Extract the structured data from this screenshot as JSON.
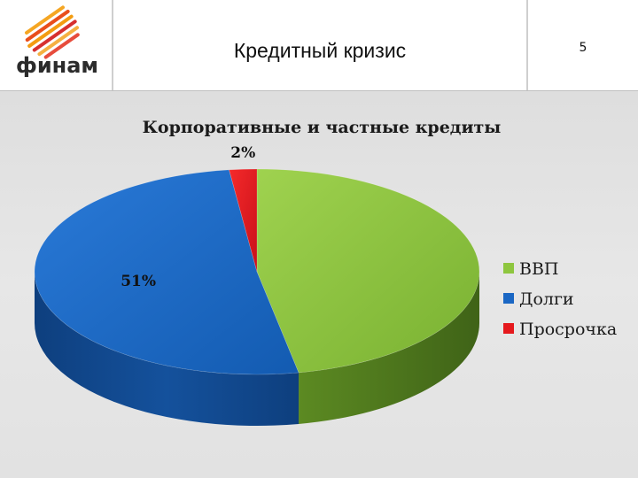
{
  "header": {
    "logo_text": "финам",
    "title": "Кредитный кризис",
    "slide_number": "5"
  },
  "chart_data": {
    "type": "pie",
    "style": "3d",
    "title": "Корпоративные и частные кредиты",
    "categories": [
      "ВВП",
      "Долги",
      "Просрочка"
    ],
    "values": [
      47,
      51,
      2
    ],
    "data_labels": [
      "",
      "51%",
      "2%"
    ],
    "colors": [
      "#8ec63f",
      "#1a67c4",
      "#e5191d"
    ],
    "legend_position": "right"
  }
}
